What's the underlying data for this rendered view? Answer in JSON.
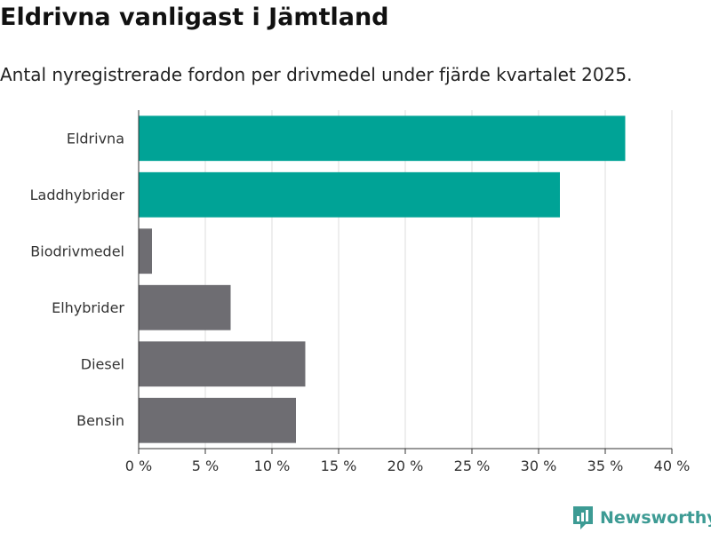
{
  "header": {
    "title": "Eldrivna vanligast i Jämtland",
    "subtitle": "Antal nyregistrerade fordon per drivmedel under fjärde kvartalet 2025."
  },
  "brand": {
    "name": "Newsworthy",
    "icon": "newsworthy-logo-icon",
    "color": "#3d9b94"
  },
  "chart_data": {
    "type": "bar",
    "orientation": "horizontal",
    "title": "Eldrivna vanligast i Jämtland",
    "subtitle": "Antal nyregistrerade fordon per drivmedel under fjärde kvartalet 2025.",
    "xlabel": "",
    "ylabel": "",
    "categories": [
      "Eldrivna",
      "Laddhybrider",
      "Biodrivmedel",
      "Elhybrider",
      "Diesel",
      "Bensin"
    ],
    "values": [
      36.5,
      31.6,
      1.0,
      6.9,
      12.5,
      11.8
    ],
    "highlight": [
      true,
      true,
      false,
      false,
      false,
      false
    ],
    "xlim": [
      0,
      40
    ],
    "ticks": [
      0,
      5,
      10,
      15,
      20,
      25,
      30,
      35,
      40
    ],
    "tick_labels": [
      "0 %",
      "5 %",
      "10 %",
      "15 %",
      "20 %",
      "25 %",
      "30 %",
      "35 %",
      "40 %"
    ],
    "grid": true,
    "colors": {
      "highlight": "#00a396",
      "default": "#6e6d72",
      "grid": "#dddddd",
      "axis": "#333333"
    }
  }
}
